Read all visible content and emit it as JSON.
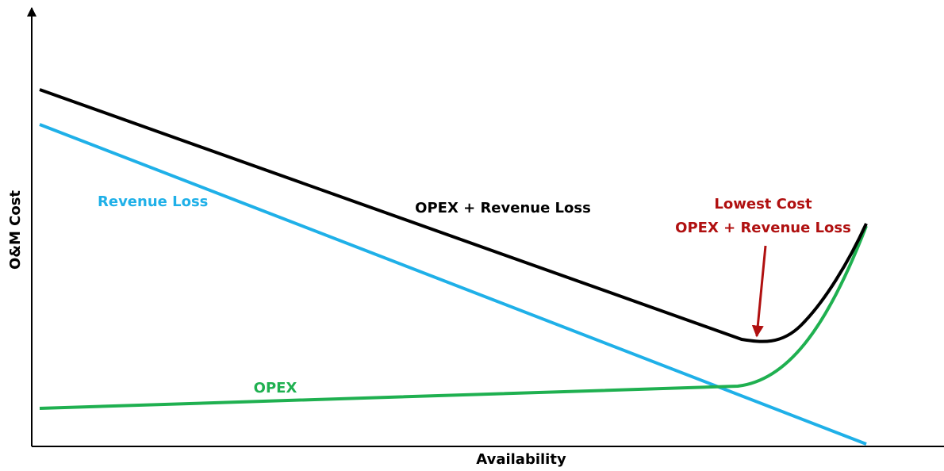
{
  "axes": {
    "y_label": "O&M Cost",
    "x_label": "Availability"
  },
  "curves": [
    {
      "label": "OPEX + Revenue Loss"
    },
    {
      "label": "Revenue Loss"
    },
    {
      "label": "OPEX"
    }
  ],
  "annotation": {
    "line1": "Lowest Cost",
    "line2": "OPEX + Revenue Loss"
  }
}
